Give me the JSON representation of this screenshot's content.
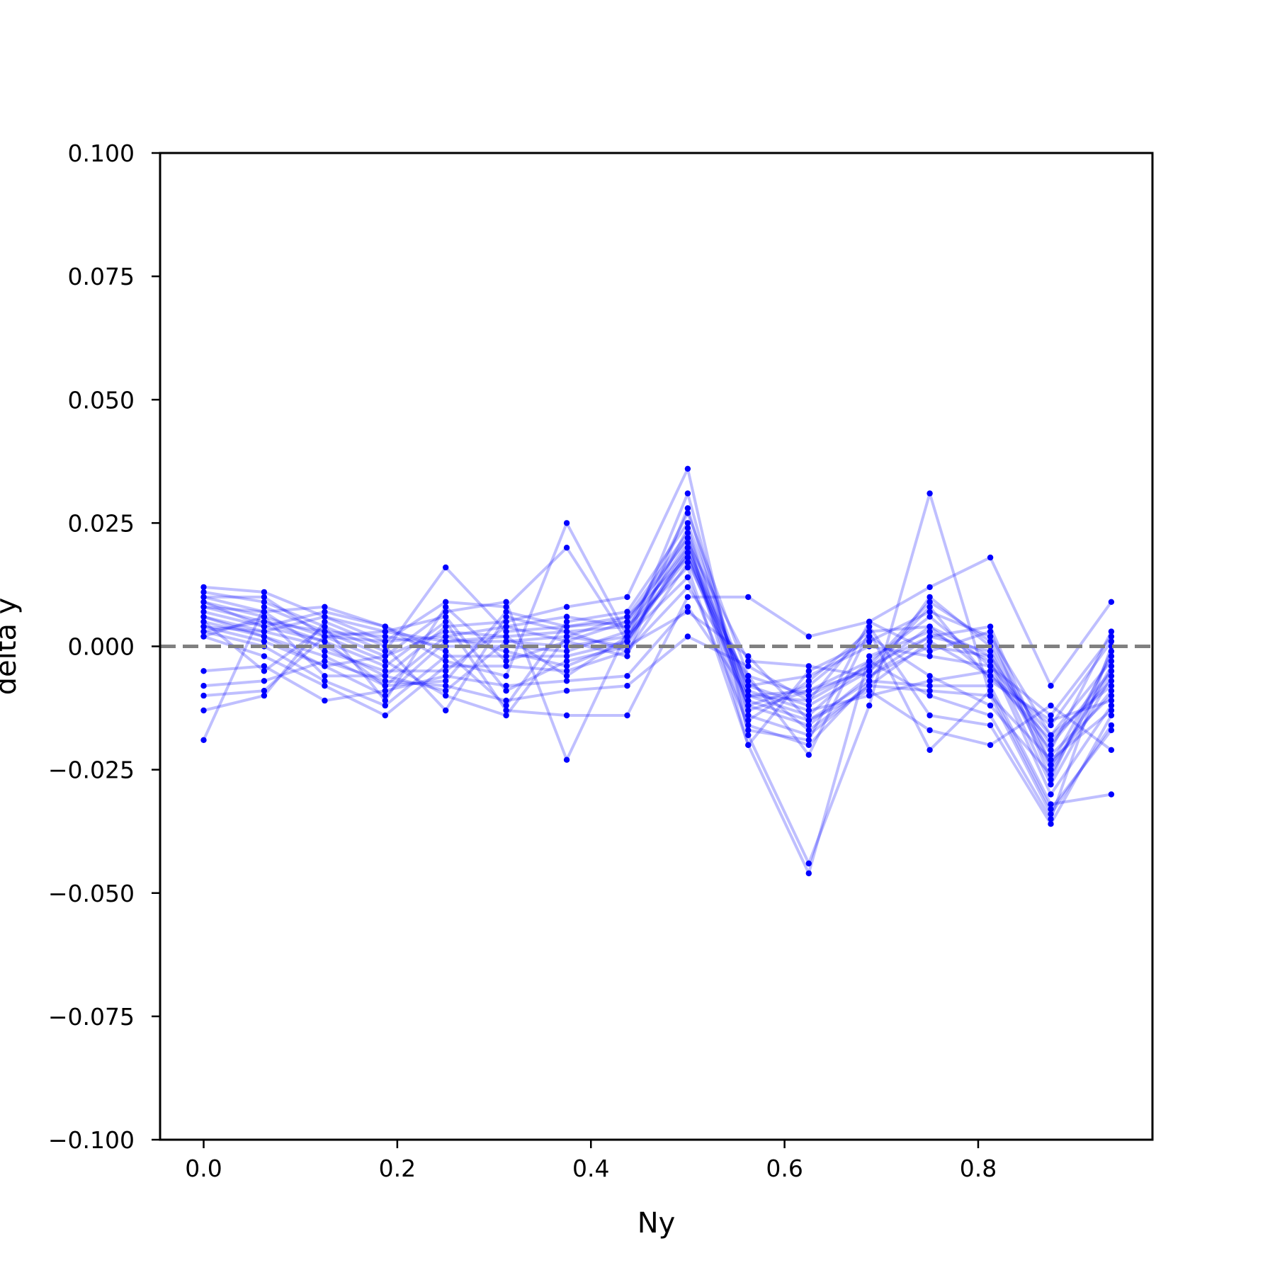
{
  "chart_data": {
    "type": "line",
    "xlabel": "Ny",
    "ylabel": "delta y",
    "xlim": [
      -0.045,
      0.98
    ],
    "ylim": [
      -0.1,
      0.1
    ],
    "x_ticks": [
      "0.0",
      "0.2",
      "0.4",
      "0.6",
      "0.8"
    ],
    "x_tick_values": [
      0.0,
      0.2,
      0.4,
      0.6,
      0.8
    ],
    "y_ticks": [
      "0.100",
      "0.075",
      "0.050",
      "0.025",
      "0.000",
      "−0.025",
      "−0.050",
      "−0.075",
      "−0.100"
    ],
    "y_tick_values": [
      0.1,
      0.075,
      0.05,
      0.025,
      0.0,
      -0.025,
      -0.05,
      -0.075,
      -0.1
    ],
    "reference_line": {
      "y": 0.0,
      "style": "dashed",
      "color": "#808080"
    },
    "grid": false,
    "legend": "none",
    "series_color": "#0000ff",
    "series_line_opacity": 0.25,
    "x": [
      0.0,
      0.0625,
      0.125,
      0.1875,
      0.25,
      0.3125,
      0.375,
      0.4375,
      0.5,
      0.5625,
      0.625,
      0.6875,
      0.75,
      0.8125,
      0.875,
      0.9375
    ],
    "series": [
      {
        "values": [
          0.012,
          0.011,
          0.006,
          0.003,
          0.001,
          0.002,
          0.003,
          0.004,
          0.02,
          -0.008,
          -0.012,
          -0.005,
          0.004,
          -0.002,
          -0.02,
          -0.005
        ]
      },
      {
        "values": [
          0.011,
          0.009,
          0.004,
          -0.001,
          0.016,
          0.003,
          0.004,
          0.006,
          0.023,
          -0.01,
          -0.014,
          -0.003,
          0.006,
          -0.004,
          -0.018,
          -0.008
        ]
      },
      {
        "values": [
          0.01,
          0.007,
          0.008,
          0.004,
          -0.003,
          -0.006,
          0.025,
          0.002,
          0.018,
          -0.012,
          -0.016,
          -0.006,
          0.002,
          0.004,
          -0.024,
          -0.002
        ]
      },
      {
        "values": [
          0.009,
          0.006,
          0.002,
          0.001,
          0.009,
          0.008,
          0.02,
          0.001,
          0.031,
          -0.014,
          -0.018,
          -0.008,
          0.001,
          -0.006,
          -0.016,
          0.001
        ]
      },
      {
        "values": [
          0.008,
          0.005,
          0.003,
          -0.002,
          0.007,
          0.009,
          -0.023,
          0.003,
          0.027,
          -0.006,
          -0.01,
          -0.004,
          0.009,
          0.001,
          -0.022,
          -0.01
        ]
      },
      {
        "values": [
          0.007,
          0.004,
          0.001,
          -0.004,
          0.005,
          -0.013,
          -0.014,
          -0.014,
          0.01,
          0.01,
          0.002,
          0.005,
          0.012,
          0.018,
          -0.008,
          0.009
        ]
      },
      {
        "values": [
          0.006,
          0.003,
          0.0,
          -0.006,
          0.004,
          0.005,
          0.008,
          0.01,
          0.036,
          -0.018,
          -0.044,
          -0.012,
          0.031,
          -0.01,
          -0.034,
          -0.016
        ]
      },
      {
        "values": [
          0.005,
          0.002,
          -0.002,
          -0.008,
          0.002,
          0.004,
          0.001,
          0.005,
          0.022,
          -0.02,
          -0.046,
          -0.002,
          0.003,
          -0.003,
          -0.03,
          -0.012
        ]
      },
      {
        "values": [
          0.004,
          0.001,
          -0.004,
          -0.01,
          0.001,
          0.001,
          0.0,
          0.002,
          0.014,
          -0.016,
          -0.02,
          -0.007,
          -0.008,
          -0.008,
          -0.032,
          -0.03
        ]
      },
      {
        "values": [
          0.003,
          0.0,
          -0.007,
          -0.012,
          -0.002,
          -0.002,
          -0.002,
          0.001,
          0.019,
          -0.012,
          -0.008,
          0.002,
          -0.006,
          -0.012,
          -0.026,
          -0.004
        ]
      },
      {
        "values": [
          0.002,
          -0.002,
          -0.008,
          -0.014,
          -0.004,
          -0.004,
          -0.005,
          -0.001,
          0.017,
          -0.008,
          -0.006,
          0.0,
          -0.002,
          -0.004,
          -0.014,
          0.002
        ]
      },
      {
        "values": [
          -0.005,
          -0.004,
          -0.011,
          -0.009,
          -0.006,
          -0.008,
          -0.007,
          -0.006,
          0.008,
          -0.01,
          -0.009,
          -0.003,
          -0.01,
          -0.014,
          -0.035,
          0.0
        ]
      },
      {
        "values": [
          -0.008,
          -0.007,
          -0.003,
          -0.007,
          -0.008,
          -0.011,
          -0.009,
          -0.008,
          0.002,
          -0.004,
          -0.011,
          0.004,
          -0.014,
          -0.016,
          -0.036,
          -0.014
        ]
      },
      {
        "values": [
          -0.01,
          -0.009,
          0.002,
          -0.003,
          -0.01,
          -0.014,
          0.002,
          0.0,
          0.007,
          -0.002,
          -0.015,
          -0.009,
          -0.017,
          -0.02,
          -0.012,
          -0.021
        ]
      },
      {
        "values": [
          -0.013,
          -0.01,
          0.005,
          0.0,
          -0.013,
          0.006,
          0.003,
          -0.001,
          0.012,
          -0.006,
          -0.022,
          0.003,
          -0.021,
          -0.009,
          -0.033,
          -0.017
        ]
      },
      {
        "values": [
          -0.019,
          0.008,
          0.003,
          0.002,
          0.0,
          0.0,
          -0.001,
          0.003,
          0.021,
          -0.003,
          -0.004,
          -0.006,
          0.0,
          -0.002,
          -0.028,
          -0.006
        ]
      },
      {
        "values": [
          0.009,
          0.004,
          0.007,
          0.004,
          -0.001,
          -0.012,
          0.005,
          0.007,
          0.025,
          -0.009,
          -0.013,
          -0.01,
          -0.007,
          -0.005,
          -0.021,
          0.003
        ]
      },
      {
        "values": [
          0.008,
          0.007,
          -0.001,
          -0.005,
          -0.005,
          0.004,
          0.006,
          0.004,
          0.016,
          -0.02,
          -0.005,
          0.001,
          0.007,
          0.002,
          -0.018,
          -0.003
        ]
      },
      {
        "values": [
          0.006,
          0.002,
          -0.004,
          -0.002,
          0.003,
          0.002,
          -0.006,
          0.002,
          0.019,
          -0.011,
          -0.015,
          -0.007,
          0.01,
          0.0,
          -0.024,
          -0.009
        ]
      },
      {
        "values": [
          0.005,
          -0.005,
          0.004,
          -0.011,
          0.008,
          -0.003,
          0.001,
          -0.002,
          0.028,
          -0.013,
          -0.009,
          -0.005,
          0.008,
          -0.007,
          -0.015,
          -0.011
        ]
      },
      {
        "values": [
          0.003,
          0.005,
          0.001,
          -0.008,
          -0.007,
          0.007,
          0.004,
          0.005,
          0.022,
          -0.017,
          -0.019,
          0.005,
          -0.001,
          0.003,
          -0.027,
          -0.001
        ]
      },
      {
        "values": [
          0.01,
          0.01,
          0.002,
          0.003,
          0.006,
          -0.009,
          -0.003,
          0.0,
          0.024,
          -0.015,
          -0.007,
          0.003,
          0.004,
          -0.006,
          -0.019,
          -0.007
        ]
      },
      {
        "values": [
          0.002,
          0.006,
          -0.006,
          -0.006,
          -0.009,
          0.001,
          0.002,
          0.006,
          0.018,
          -0.007,
          -0.017,
          -0.008,
          -0.009,
          -0.01,
          -0.023,
          -0.013
        ]
      },
      {
        "values": [
          0.004,
          0.003,
          0.006,
          0.001,
          0.002,
          -0.001,
          -0.004,
          0.001,
          0.02,
          -0.01,
          -0.011,
          -0.004,
          0.002,
          -0.001,
          -0.025,
          -0.005
        ]
      }
    ]
  }
}
